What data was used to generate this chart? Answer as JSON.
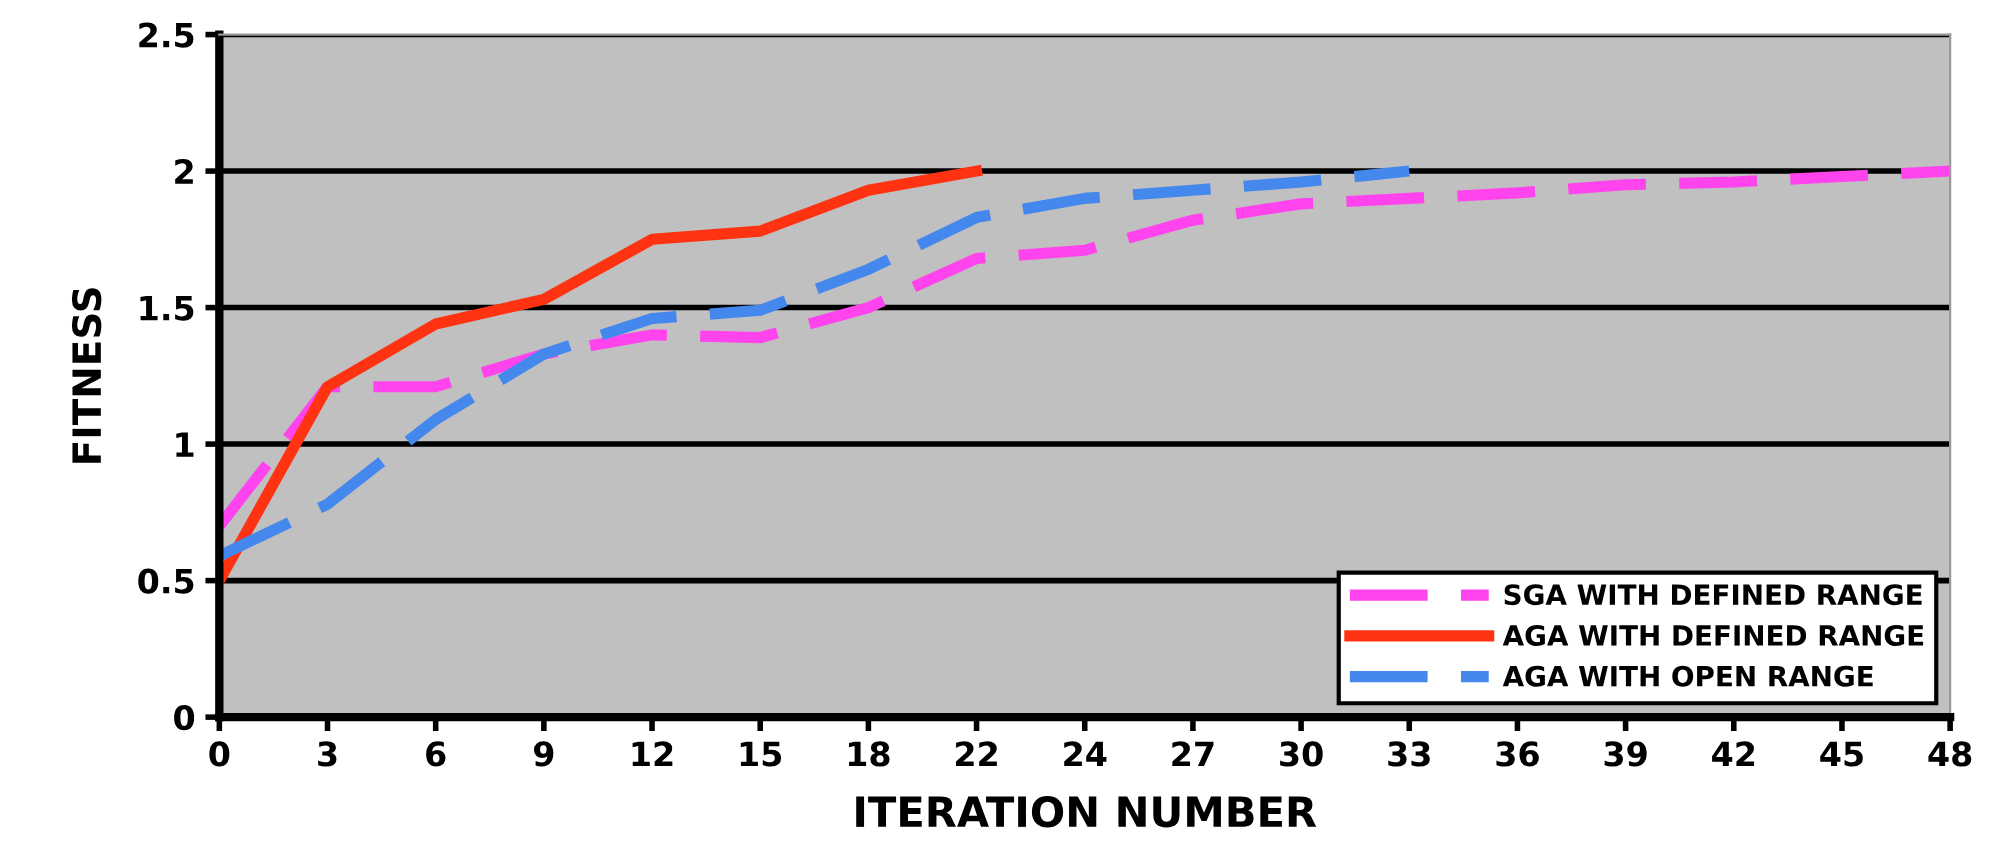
{
  "chart_data": {
    "type": "line",
    "xlabel": "ITERATION NUMBER",
    "ylabel": "FITNESS",
    "categories": [
      "0",
      "3",
      "6",
      "9",
      "12",
      "15",
      "18",
      "22",
      "24",
      "27",
      "30",
      "33",
      "36",
      "39",
      "42",
      "45",
      "48"
    ],
    "ylim": [
      0,
      2.5
    ],
    "yticks": [
      0,
      0.5,
      1,
      1.5,
      2,
      2.5
    ],
    "grid": "y",
    "legend": "lower right",
    "marker": "none",
    "series": [
      {
        "name": "SGA WITH DEFINED RANGE",
        "color": "#ff44ee",
        "line_style": "dashed",
        "values": [
          0.7,
          1.21,
          1.21,
          1.33,
          1.4,
          1.39,
          1.5,
          1.68,
          1.71,
          1.82,
          1.88,
          1.9,
          1.92,
          1.95,
          1.96,
          1.98,
          2.0
        ]
      },
      {
        "name": "AGA WITH DEFINED RANGE",
        "color": "#ff3311",
        "line_style": "solid",
        "values": [
          0.5,
          1.21,
          1.44,
          1.53,
          1.75,
          1.78,
          1.93,
          2.0,
          null,
          null,
          null,
          null,
          null,
          null,
          null,
          null,
          null
        ]
      },
      {
        "name": "AGA WITH OPEN RANGE",
        "color": "#4488ee",
        "line_style": "dashed",
        "values": [
          0.59,
          0.78,
          1.09,
          1.33,
          1.46,
          1.49,
          1.64,
          1.83,
          1.9,
          1.93,
          1.96,
          2.0,
          null,
          null,
          null,
          null,
          null
        ]
      }
    ]
  }
}
